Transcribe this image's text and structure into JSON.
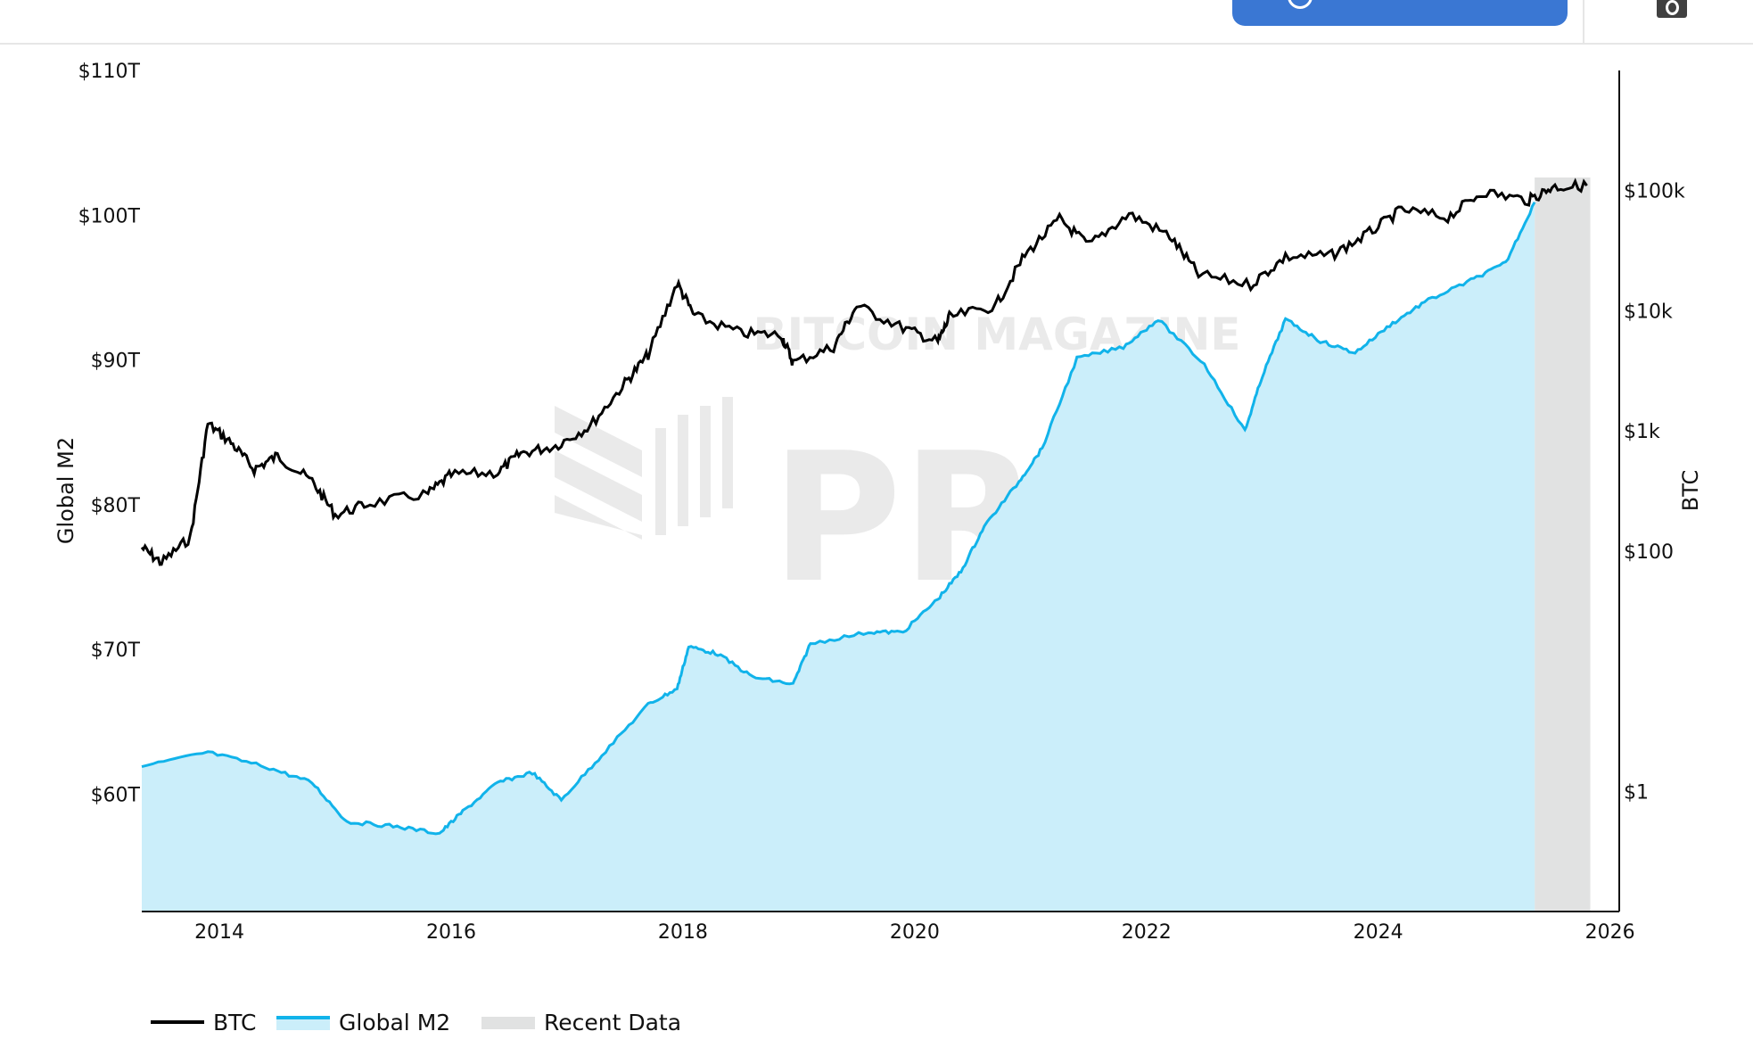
{
  "chart_data": {
    "type": "line",
    "watermark": "BITCOIN MAGAZINE PRO",
    "x_ticks": [
      "2014",
      "2016",
      "2018",
      "2020",
      "2022",
      "2024",
      "2026"
    ],
    "xlim": [
      2013.33,
      2026.08
    ],
    "left_axis": {
      "label": "Global M2",
      "ticks": [
        "$60T",
        "$70T",
        "$80T",
        "$90T",
        "$100T",
        "$110T"
      ],
      "tick_values": [
        60,
        70,
        80,
        90,
        100,
        110
      ],
      "ylim": [
        51.9,
        110
      ],
      "unit": "trillion USD"
    },
    "right_axis": {
      "label": "BTC",
      "scale": "log",
      "ticks": [
        "$1",
        "$100",
        "$1k",
        "$10k",
        "$100k"
      ],
      "tick_values": [
        1,
        100,
        1000,
        10000,
        100000
      ],
      "ylim": [
        0.1,
        1000000
      ]
    },
    "recent_data": {
      "label": "Recent Data",
      "x_range": [
        2025.35,
        2025.83
      ],
      "color": "#e1e2e2"
    },
    "series": [
      {
        "name": "BTC",
        "axis": "right",
        "color": "#000000",
        "x": [
          2013.33,
          2013.5,
          2013.75,
          2013.9,
          2014.1,
          2014.3,
          2014.5,
          2014.8,
          2015.0,
          2015.3,
          2015.8,
          2016.0,
          2016.4,
          2016.6,
          2016.9,
          2017.2,
          2017.5,
          2017.7,
          2017.95,
          2018.1,
          2018.5,
          2018.85,
          2018.95,
          2019.3,
          2019.5,
          2019.9,
          2020.2,
          2020.3,
          2020.7,
          2020.95,
          2021.25,
          2021.5,
          2021.85,
          2022.2,
          2022.45,
          2022.9,
          2023.2,
          2023.6,
          2023.9,
          2024.2,
          2024.6,
          2024.9,
          2025.3,
          2025.5,
          2025.8
        ],
        "values": [
          107,
          80,
          130,
          1150,
          800,
          480,
          620,
          380,
          200,
          250,
          300,
          430,
          450,
          650,
          750,
          1100,
          2500,
          4300,
          17000,
          9000,
          6500,
          6300,
          3700,
          5000,
          11000,
          7200,
          5500,
          8800,
          11000,
          29000,
          58000,
          35000,
          64000,
          42000,
          20000,
          16500,
          28000,
          29000,
          43000,
          69000,
          60000,
          98000,
          83000,
          107000,
          110000
        ]
      },
      {
        "name": "Global M2",
        "axis": "left",
        "color": "#11b3ea",
        "fill": "#cbeefa",
        "x": [
          2013.33,
          2013.9,
          2014.4,
          2014.8,
          2015.1,
          2015.5,
          2015.9,
          2016.1,
          2016.4,
          2016.7,
          2016.95,
          2017.3,
          2017.7,
          2017.95,
          2018.05,
          2018.3,
          2018.6,
          2018.95,
          2019.1,
          2019.6,
          2019.9,
          2020.2,
          2020.4,
          2020.6,
          2020.9,
          2021.1,
          2021.4,
          2021.8,
          2022.1,
          2022.5,
          2022.85,
          2023.0,
          2023.2,
          2023.5,
          2023.8,
          2024.1,
          2024.4,
          2024.8,
          2025.1,
          2025.35
        ],
        "values": [
          61.9,
          62.9,
          61.9,
          60.8,
          58.1,
          57.8,
          57.3,
          58.8,
          60.8,
          61.5,
          59.6,
          62.7,
          66.2,
          67.3,
          70.2,
          69.7,
          68.1,
          67.6,
          70.4,
          71.2,
          71.2,
          73.5,
          75.4,
          78.5,
          81.6,
          83.9,
          90.1,
          90.9,
          92.8,
          89.7,
          85.1,
          88.9,
          92.8,
          91.3,
          90.5,
          92.4,
          94.0,
          95.5,
          96.7,
          100.9
        ]
      }
    ],
    "legend": {
      "placement": "bottom-left",
      "items": [
        "BTC",
        "Global M2",
        "Recent Data"
      ]
    }
  }
}
